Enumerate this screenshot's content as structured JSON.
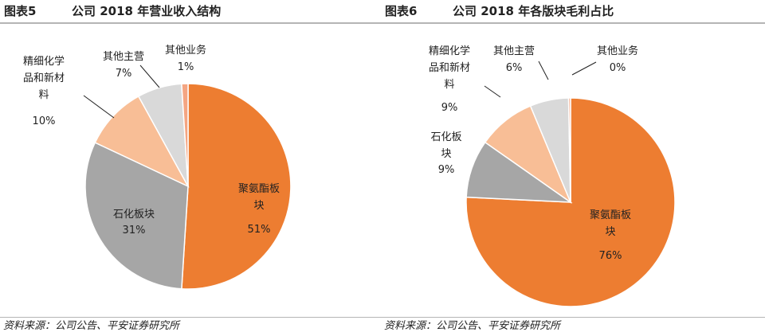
{
  "colors": {
    "orange": "#ED7D31",
    "gray": "#A6A6A6",
    "peach": "#F8BE96",
    "lightgray": "#D9D9D9",
    "salmon": "#F4A582",
    "divider": "#B5B5B5"
  },
  "panels": [
    {
      "fig_num": "图表5",
      "fig_title": "公司 2018 年营业收入结构",
      "source": "资料来源：公司公告、平安证券研究所"
    },
    {
      "fig_num": "图表6",
      "fig_title": "公司 2018 年各版块毛利占比",
      "source": "资料来源：公司公告、平安证券研究所"
    }
  ],
  "chart_data": [
    {
      "type": "pie",
      "title": "公司 2018 年营业收入结构",
      "start_angle_deg": 0,
      "direction": "clockwise",
      "slices": [
        {
          "label_lines": [
            "聚氨酯板",
            "块"
          ],
          "percent_text": "51%",
          "value": 51,
          "color": "#ED7D31"
        },
        {
          "label_lines": [
            "石化板块"
          ],
          "percent_text": "31%",
          "value": 31,
          "color": "#A6A6A6"
        },
        {
          "label_lines": [
            "精细化学",
            "品和新材",
            "料"
          ],
          "percent_text": "10%",
          "value": 10,
          "color": "#F8BE96"
        },
        {
          "label_lines": [
            "其他主营"
          ],
          "percent_text": "7%",
          "value": 7,
          "color": "#D9D9D9"
        },
        {
          "label_lines": [
            "其他业务"
          ],
          "percent_text": "1%",
          "value": 1,
          "color": "#F4A582"
        }
      ]
    },
    {
      "type": "pie",
      "title": "公司 2018 年各版块毛利占比",
      "start_angle_deg": 0,
      "direction": "clockwise",
      "slices": [
        {
          "label_lines": [
            "聚氨酯板",
            "块"
          ],
          "percent_text": "76%",
          "value": 76,
          "color": "#ED7D31"
        },
        {
          "label_lines": [
            "石化板",
            "块"
          ],
          "percent_text": "9%",
          "value": 9,
          "color": "#A6A6A6"
        },
        {
          "label_lines": [
            "精细化学",
            "品和新材",
            "料"
          ],
          "percent_text": "9%",
          "value": 9,
          "color": "#F8BE96"
        },
        {
          "label_lines": [
            "其他主营"
          ],
          "percent_text": "6%",
          "value": 6,
          "color": "#D9D9D9"
        },
        {
          "label_lines": [
            "其他业务"
          ],
          "percent_text": "0%",
          "value": 0.3,
          "color": "#F4A582"
        }
      ]
    }
  ]
}
